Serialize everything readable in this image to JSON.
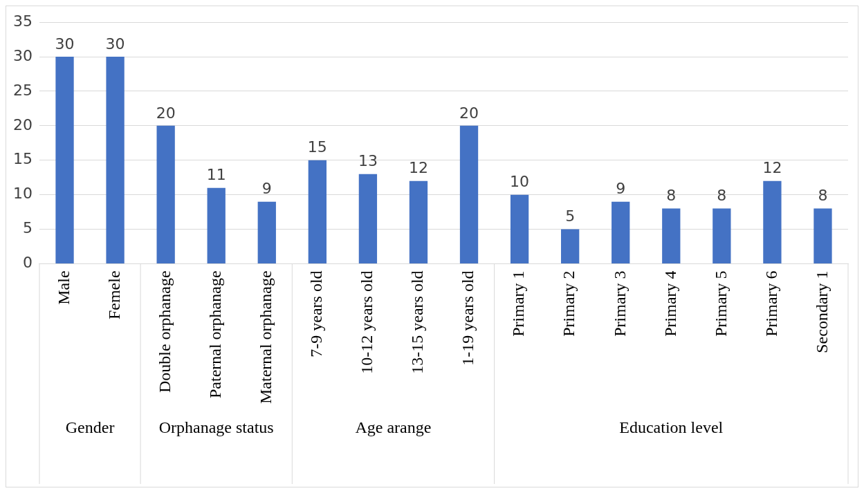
{
  "chart_data": {
    "type": "bar",
    "categories": [
      "Male",
      "Femele",
      "Double orphanage",
      "Paternal orphanage",
      "Maternal orphanage",
      "7-9 years old",
      "10-12 years old",
      "13-15 years old",
      "1-19 years old",
      "Primary 1",
      "Primary 2",
      "Primary 3",
      "Primary 4",
      "Primary 5",
      "Primary 6",
      "Secondary 1"
    ],
    "values": [
      30,
      30,
      20,
      11,
      9,
      15,
      13,
      12,
      20,
      10,
      5,
      9,
      8,
      8,
      12,
      8
    ],
    "color": "#4472c4",
    "ylim": [
      0,
      35
    ],
    "yticks": [
      0,
      5,
      10,
      15,
      20,
      25,
      30,
      35
    ],
    "grid": "y",
    "data_labels": true,
    "legend": false,
    "annotations": [
      "Gender",
      "Orphanage status",
      "Age arange",
      "Education level"
    ]
  }
}
